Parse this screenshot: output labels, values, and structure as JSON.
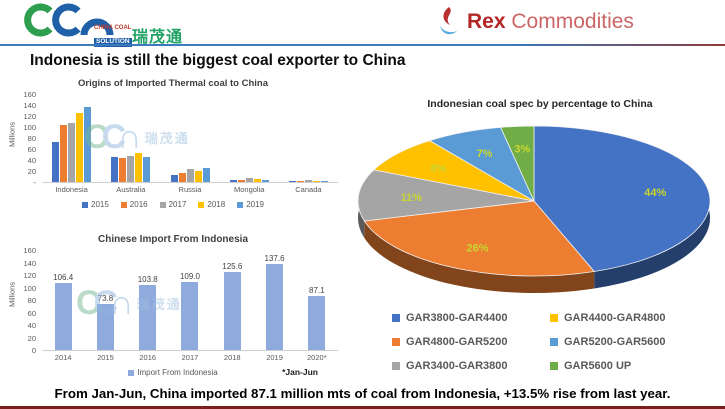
{
  "header": {
    "left_logo": {
      "line1": "CHINA COAL",
      "line2": "SOLUTION",
      "cjk": "瑞茂通"
    },
    "right_logo": {
      "brand": "Rex",
      "suffix": "Commodities"
    }
  },
  "title": "Indonesia is still the biggest coal exporter to China",
  "watermark": {
    "l1": "C",
    "l2": "C",
    "l3": "∩",
    "cjk": "瑞茂通"
  },
  "footer": "From Jan-Jun, China imported 87.1 million mts of coal from Indonesia, +13.5% rise from last year.",
  "chart_data": [
    {
      "type": "bar",
      "title": "Origins of Imported Thermal coal to China",
      "ylabel": "Millions",
      "categories": [
        "Indonesia",
        "Australia",
        "Russia",
        "Mongolia",
        "Canada"
      ],
      "series": [
        {
          "name": "2015",
          "color": "#4472c4",
          "values": [
            73,
            45,
            12,
            3,
            1
          ]
        },
        {
          "name": "2016",
          "color": "#ed7d31",
          "values": [
            103,
            44,
            16,
            4,
            1
          ]
        },
        {
          "name": "2017",
          "color": "#a5a5a5",
          "values": [
            108,
            48,
            23,
            8,
            3
          ]
        },
        {
          "name": "2018",
          "color": "#ffc000",
          "values": [
            125,
            52,
            20,
            6,
            2
          ]
        },
        {
          "name": "2019",
          "color": "#5b9bd5",
          "values": [
            137,
            46,
            26,
            4,
            1
          ]
        }
      ],
      "ylim": [
        0,
        160
      ],
      "yticks": [
        "160",
        "140",
        "120",
        "100",
        "80",
        "60",
        "40",
        "20",
        "-"
      ],
      "grid": false,
      "legend_position": "bottom"
    },
    {
      "type": "bar",
      "title": "Chinese Import From Indonesia",
      "ylabel": "Millions",
      "categories": [
        "2014",
        "2015",
        "2016",
        "2017",
        "2018",
        "2019",
        "2020*"
      ],
      "values": [
        106.4,
        73.8,
        103.8,
        109,
        125.6,
        137.6,
        87.1
      ],
      "value_labels": [
        "106.4",
        "73.8",
        "103.8",
        "109.0",
        "125.6",
        "137.6",
        "87.1"
      ],
      "bar_color": "#8faadc",
      "ylim": [
        0,
        160
      ],
      "yticks": [
        "160",
        "140",
        "120",
        "100",
        "80",
        "60",
        "40",
        "20",
        "0"
      ],
      "grid": false,
      "legend": "Import From Indonesia",
      "footnote": "*Jan-Jun",
      "legend_position": "bottom"
    },
    {
      "type": "pie",
      "title": "Indonesian coal spec by percentage to China",
      "effect": "3d",
      "label_color": "#c9d62f",
      "slices": [
        {
          "label": "GAR3800-GAR4400",
          "value": 44,
          "color": "#4472c4"
        },
        {
          "label": "GAR4800-GAR5200",
          "value": 26,
          "color": "#ed7d31"
        },
        {
          "label": "GAR3400-GAR3800",
          "value": 11,
          "color": "#a5a5a5"
        },
        {
          "label": "GAR4400-GAR4800",
          "value": 8,
          "color": "#ffc000"
        },
        {
          "label": "GAR5200-GAR5600",
          "value": 7,
          "color": "#5b9bd5"
        },
        {
          "label": "GAR5600 UP",
          "value": 3,
          "color": "#70ad47"
        }
      ],
      "legend_order": [
        "GAR3800-GAR4400",
        "GAR4400-GAR4800",
        "GAR4800-GAR5200",
        "GAR5200-GAR5600",
        "GAR3400-GAR3800",
        "GAR5600 UP"
      ],
      "legend_position": "bottom"
    }
  ]
}
